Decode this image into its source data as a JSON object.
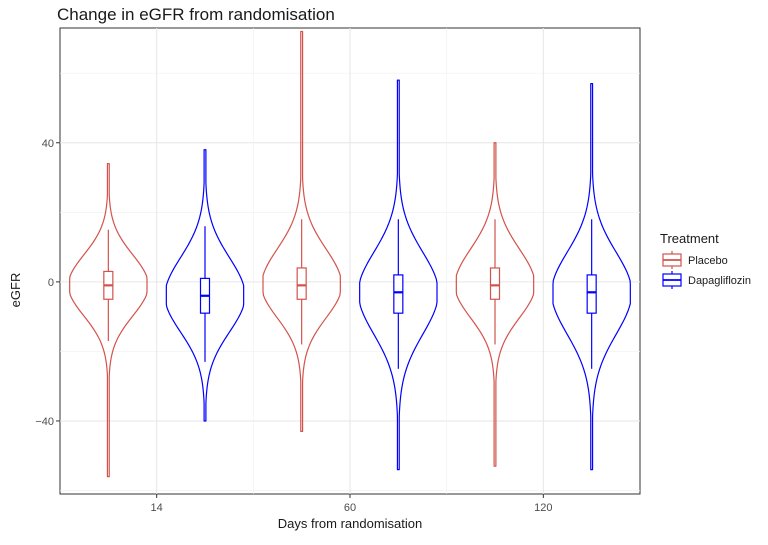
{
  "chart_data": {
    "type": "violin",
    "title": "Change in eGFR from randomisation",
    "xlabel": "Days from randomisation",
    "ylabel": "eGFR",
    "categories": [
      "14",
      "60",
      "120"
    ],
    "ylim": [
      -61,
      73
    ],
    "yticks": [
      -40,
      0,
      40
    ],
    "grid": true,
    "legend": {
      "title": "Treatment",
      "position": "right"
    },
    "series": [
      {
        "name": "Placebo",
        "color": "#d3534b",
        "groups": [
          {
            "category": "14",
            "min": -56,
            "q1": -5,
            "median": -1,
            "q3": 3,
            "max": 34,
            "whisker_low": -17,
            "whisker_high": 15
          },
          {
            "category": "60",
            "min": -43,
            "q1": -5,
            "median": -1,
            "q3": 4,
            "max": 72,
            "whisker_low": -18,
            "whisker_high": 18
          },
          {
            "category": "120",
            "min": -53,
            "q1": -5,
            "median": -1,
            "q3": 4,
            "max": 40,
            "whisker_low": -18,
            "whisker_high": 18
          }
        ]
      },
      {
        "name": "Dapagliflozin",
        "color": "#0000ff",
        "groups": [
          {
            "category": "14",
            "min": -40,
            "q1": -9,
            "median": -4,
            "q3": 1,
            "max": 38,
            "whisker_low": -23,
            "whisker_high": 16
          },
          {
            "category": "60",
            "min": -54,
            "q1": -9,
            "median": -3,
            "q3": 2,
            "max": 58,
            "whisker_low": -25,
            "whisker_high": 18
          },
          {
            "category": "120",
            "min": -54,
            "q1": -9,
            "median": -3,
            "q3": 2,
            "max": 57,
            "whisker_low": -25,
            "whisker_high": 18
          }
        ]
      }
    ]
  }
}
